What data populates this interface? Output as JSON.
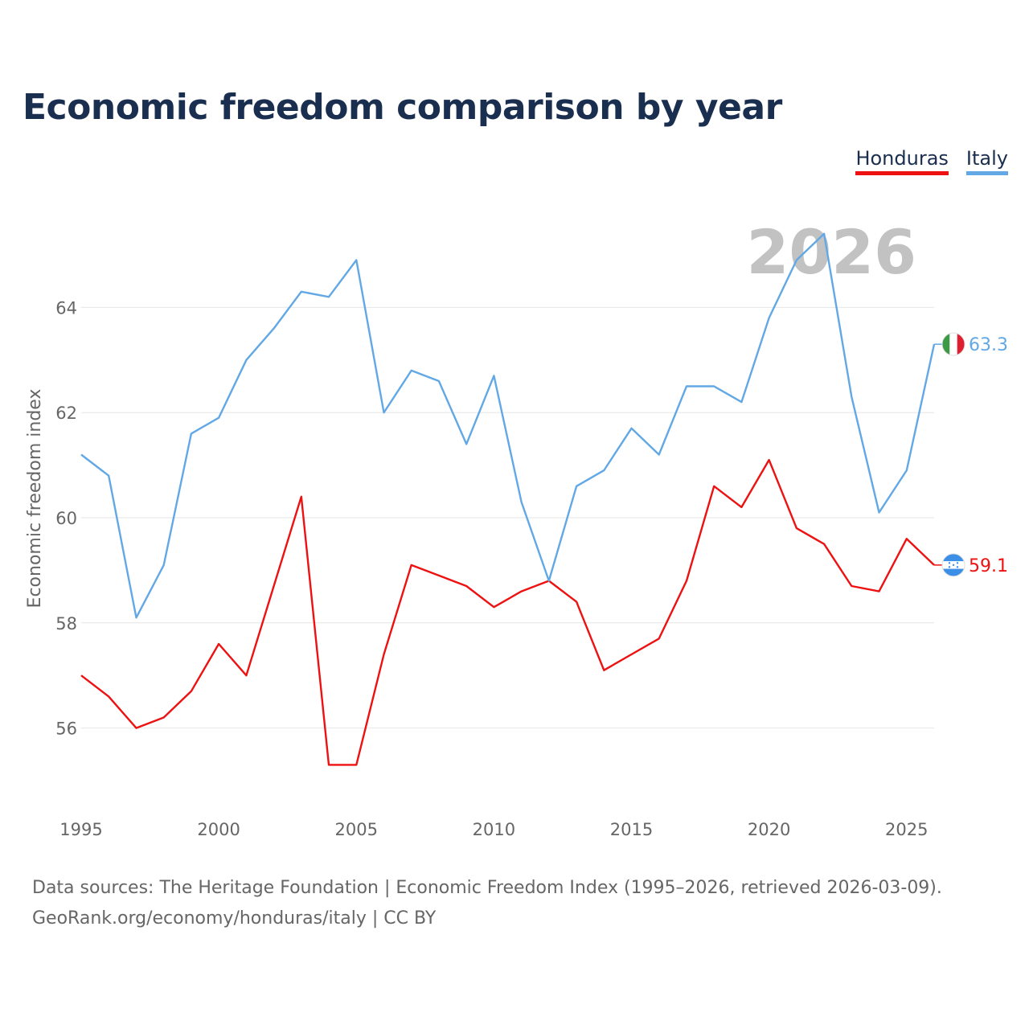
{
  "title": "Economic freedom comparison by year",
  "legend": [
    {
      "label": "Honduras",
      "color": "#ee1111"
    },
    {
      "label": "Italy",
      "color": "#62a8e5"
    }
  ],
  "source": {
    "line1": "Data sources: The Heritage Foundation | Economic Freedom Index (1995–2026, retrieved 2026-03-09).",
    "line2": "GeoRank.org/economy/honduras/italy | CC BY"
  },
  "chart_data": {
    "type": "line",
    "title": "Economic freedom comparison by year",
    "xlabel": "",
    "ylabel": "Economic freedom index",
    "current_year": "2026",
    "xlim": [
      1995,
      2026
    ],
    "ylim": [
      54.5,
      66.5
    ],
    "x_ticks": [
      1995,
      2000,
      2005,
      2010,
      2015,
      2020,
      2025
    ],
    "y_ticks": [
      56,
      58,
      60,
      62,
      64
    ],
    "x": [
      1995,
      1996,
      1997,
      1998,
      1999,
      2000,
      2001,
      2002,
      2003,
      2004,
      2005,
      2006,
      2007,
      2008,
      2009,
      2010,
      2011,
      2012,
      2013,
      2014,
      2015,
      2016,
      2017,
      2018,
      2019,
      2020,
      2021,
      2022,
      2023,
      2024,
      2025,
      2026
    ],
    "series": [
      {
        "name": "Honduras",
        "color": "#ee1111",
        "end_label": "59.1",
        "flag_icon": "honduras-flag-icon",
        "values": [
          57.0,
          56.6,
          56.0,
          56.2,
          56.7,
          57.6,
          57.0,
          58.7,
          60.4,
          55.3,
          55.3,
          57.4,
          59.1,
          58.9,
          58.7,
          58.3,
          58.6,
          58.8,
          58.4,
          57.1,
          57.4,
          57.7,
          58.8,
          60.6,
          60.2,
          61.1,
          59.8,
          59.5,
          58.7,
          58.6,
          59.6,
          59.1
        ]
      },
      {
        "name": "Italy",
        "color": "#62a8e5",
        "end_label": "63.3",
        "flag_icon": "italy-flag-icon",
        "values": [
          61.2,
          60.8,
          58.1,
          59.1,
          61.6,
          61.9,
          63.0,
          63.6,
          64.3,
          64.2,
          64.9,
          62.0,
          62.8,
          62.6,
          61.4,
          62.7,
          60.3,
          58.8,
          60.6,
          60.9,
          61.7,
          61.2,
          62.5,
          62.5,
          62.2,
          63.8,
          64.9,
          65.4,
          62.3,
          60.1,
          60.9,
          63.3
        ]
      }
    ]
  }
}
